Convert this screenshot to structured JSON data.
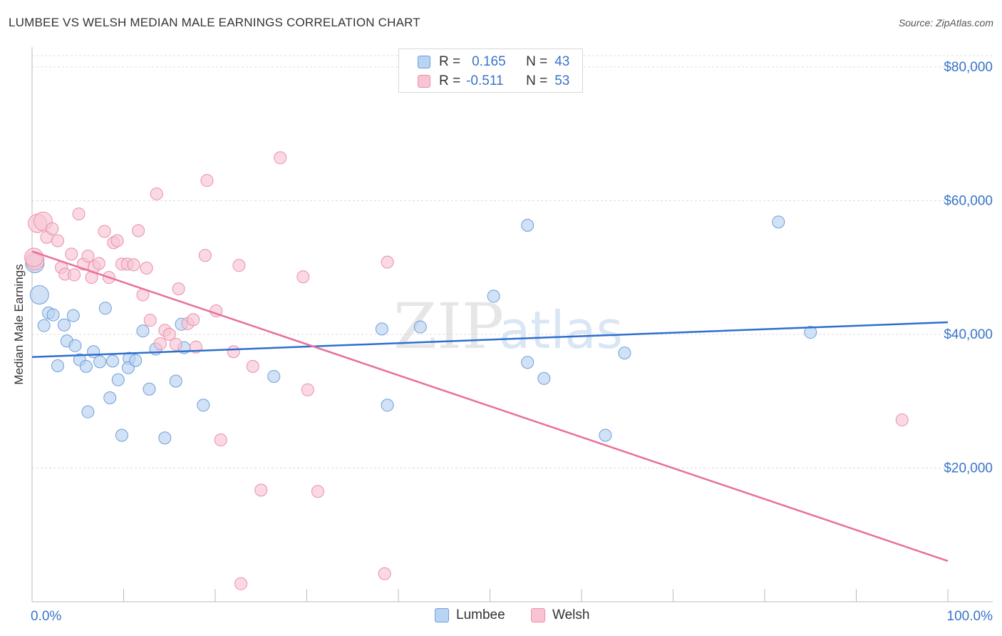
{
  "title": "LUMBEE VS WELSH MEDIAN MALE EARNINGS CORRELATION CHART",
  "source": "Source: ZipAtlas.com",
  "watermark": {
    "zip": "ZIP",
    "atlas": "atlas"
  },
  "legend": {
    "rows": [
      {
        "r_label": "R =",
        "r_value": "0.165",
        "n_label": "N =",
        "n_value": "43"
      },
      {
        "r_label": "R =",
        "r_value": "-0.511",
        "n_label": "N =",
        "n_value": "53"
      }
    ]
  },
  "bottom_legend": [
    "Lumbee",
    "Welsh"
  ],
  "colors": {
    "lumbee_fill": "#b9d3f2",
    "lumbee_stroke": "#6d9fd8",
    "lumbee_line": "#2f6fcc",
    "welsh_fill": "#f8c4d3",
    "welsh_stroke": "#e98fab",
    "welsh_line": "#e8709a",
    "axis_text": "#3a74c9",
    "grid": "#dddddd"
  },
  "chart_data": {
    "type": "scatter",
    "title": "LUMBEE VS WELSH MEDIAN MALE EARNINGS CORRELATION CHART",
    "xlabel": "",
    "ylabel": "Median Male Earnings",
    "xlim": [
      0,
      100
    ],
    "ylim": [
      0,
      82000
    ],
    "x_tick_labels": [
      "0.0%",
      "100.0%"
    ],
    "y_ticks": [
      20000,
      40000,
      60000,
      80000
    ],
    "y_tick_labels": [
      "$20,000",
      "$40,000",
      "$60,000",
      "$80,000"
    ],
    "grid": true,
    "series": [
      {
        "name": "Lumbee",
        "r": 0.165,
        "n": 43,
        "trend": {
          "x": [
            0,
            100
          ],
          "y": [
            36600,
            41800
          ]
        },
        "points": [
          {
            "x": 0.3,
            "y": 50600
          },
          {
            "x": 0.8,
            "y": 45900
          },
          {
            "x": 1.3,
            "y": 41300
          },
          {
            "x": 1.8,
            "y": 43200
          },
          {
            "x": 2.3,
            "y": 42900
          },
          {
            "x": 2.8,
            "y": 35300
          },
          {
            "x": 3.5,
            "y": 41400
          },
          {
            "x": 3.8,
            "y": 39000
          },
          {
            "x": 4.5,
            "y": 42800
          },
          {
            "x": 4.7,
            "y": 38300
          },
          {
            "x": 5.2,
            "y": 36200
          },
          {
            "x": 5.9,
            "y": 35200
          },
          {
            "x": 6.1,
            "y": 28400
          },
          {
            "x": 6.7,
            "y": 37400
          },
          {
            "x": 7.4,
            "y": 35900
          },
          {
            "x": 8.0,
            "y": 43900
          },
          {
            "x": 8.5,
            "y": 30500
          },
          {
            "x": 8.8,
            "y": 36000
          },
          {
            "x": 9.4,
            "y": 33200
          },
          {
            "x": 9.8,
            "y": 24900
          },
          {
            "x": 10.6,
            "y": 36400
          },
          {
            "x": 10.5,
            "y": 35000
          },
          {
            "x": 11.3,
            "y": 36100
          },
          {
            "x": 12.1,
            "y": 40500
          },
          {
            "x": 12.8,
            "y": 31800
          },
          {
            "x": 13.5,
            "y": 37800
          },
          {
            "x": 14.5,
            "y": 24500
          },
          {
            "x": 15.7,
            "y": 33000
          },
          {
            "x": 16.6,
            "y": 38000
          },
          {
            "x": 16.3,
            "y": 41500
          },
          {
            "x": 18.7,
            "y": 29400
          },
          {
            "x": 26.4,
            "y": 33700
          },
          {
            "x": 38.2,
            "y": 40800
          },
          {
            "x": 38.8,
            "y": 29400
          },
          {
            "x": 42.4,
            "y": 41100
          },
          {
            "x": 50.4,
            "y": 45700
          },
          {
            "x": 54.1,
            "y": 56300
          },
          {
            "x": 54.1,
            "y": 35800
          },
          {
            "x": 55.9,
            "y": 33400
          },
          {
            "x": 62.6,
            "y": 24900
          },
          {
            "x": 64.7,
            "y": 37200
          },
          {
            "x": 81.5,
            "y": 56800
          },
          {
            "x": 85.0,
            "y": 40300
          }
        ]
      },
      {
        "name": "Welsh",
        "r": -0.511,
        "n": 53,
        "trend": {
          "x": [
            0,
            100
          ],
          "y": [
            52400,
            6100
          ]
        },
        "points": [
          {
            "x": 0.3,
            "y": 51000
          },
          {
            "x": 0.6,
            "y": 56600
          },
          {
            "x": 1.2,
            "y": 56900
          },
          {
            "x": 1.6,
            "y": 54500
          },
          {
            "x": 2.2,
            "y": 55800
          },
          {
            "x": 2.8,
            "y": 54000
          },
          {
            "x": 3.2,
            "y": 50000
          },
          {
            "x": 3.6,
            "y": 49000
          },
          {
            "x": 4.3,
            "y": 52000
          },
          {
            "x": 4.6,
            "y": 48900
          },
          {
            "x": 5.1,
            "y": 58000
          },
          {
            "x": 5.6,
            "y": 50500
          },
          {
            "x": 6.1,
            "y": 51700
          },
          {
            "x": 6.5,
            "y": 48500
          },
          {
            "x": 6.8,
            "y": 50100
          },
          {
            "x": 7.3,
            "y": 50600
          },
          {
            "x": 7.9,
            "y": 55400
          },
          {
            "x": 8.4,
            "y": 48500
          },
          {
            "x": 8.9,
            "y": 53700
          },
          {
            "x": 9.3,
            "y": 54000
          },
          {
            "x": 9.8,
            "y": 50500
          },
          {
            "x": 10.4,
            "y": 50500
          },
          {
            "x": 11.1,
            "y": 50400
          },
          {
            "x": 11.6,
            "y": 55500
          },
          {
            "x": 12.1,
            "y": 45900
          },
          {
            "x": 12.5,
            "y": 49900
          },
          {
            "x": 12.9,
            "y": 42100
          },
          {
            "x": 13.6,
            "y": 61000
          },
          {
            "x": 14.0,
            "y": 38600
          },
          {
            "x": 14.5,
            "y": 40600
          },
          {
            "x": 15.0,
            "y": 40000
          },
          {
            "x": 15.7,
            "y": 38500
          },
          {
            "x": 16.0,
            "y": 46800
          },
          {
            "x": 17.0,
            "y": 41600
          },
          {
            "x": 17.6,
            "y": 42200
          },
          {
            "x": 17.9,
            "y": 38100
          },
          {
            "x": 18.9,
            "y": 51800
          },
          {
            "x": 19.1,
            "y": 63000
          },
          {
            "x": 20.1,
            "y": 43500
          },
          {
            "x": 20.6,
            "y": 24200
          },
          {
            "x": 22.0,
            "y": 37400
          },
          {
            "x": 22.8,
            "y": 2700
          },
          {
            "x": 22.6,
            "y": 50300
          },
          {
            "x": 24.1,
            "y": 35200
          },
          {
            "x": 25.0,
            "y": 16700
          },
          {
            "x": 27.1,
            "y": 66400
          },
          {
            "x": 29.6,
            "y": 48600
          },
          {
            "x": 30.1,
            "y": 31700
          },
          {
            "x": 31.2,
            "y": 16500
          },
          {
            "x": 38.5,
            "y": 4200
          },
          {
            "x": 38.8,
            "y": 50800
          },
          {
            "x": 95.0,
            "y": 27200
          },
          {
            "x": 0.2,
            "y": 51500
          }
        ]
      }
    ]
  }
}
